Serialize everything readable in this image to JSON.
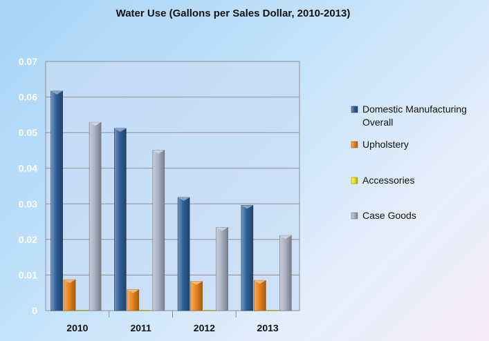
{
  "chart_data": {
    "type": "bar",
    "title": "Water Use (Gallons per Sales Dollar, 2010-2013)",
    "xlabel": "",
    "ylabel": "",
    "categories": [
      "2010",
      "2011",
      "2012",
      "2013"
    ],
    "ylim": [
      0,
      0.07
    ],
    "yticks": [
      "0",
      "0.01",
      "0.02",
      "0.03",
      "0.04",
      "0.05",
      "0.06",
      "0.07"
    ],
    "grid": true,
    "legend_position": "right",
    "series": [
      {
        "name": "Domestic Manufacturing Overall",
        "color": "#2e5f98",
        "values": [
          0.0617,
          0.0512,
          0.0318,
          0.0296
        ]
      },
      {
        "name": "Upholstery",
        "color": "#e8841a",
        "values": [
          0.0087,
          0.0059,
          0.0082,
          0.0085
        ]
      },
      {
        "name": "Accessories",
        "color": "#e8e81a",
        "values": [
          0.0001,
          0.0001,
          0.0001,
          0.0001
        ]
      },
      {
        "name": "Case Goods",
        "color": "#aab3c4",
        "values": [
          0.0529,
          0.0451,
          0.0234,
          0.0211
        ]
      }
    ]
  }
}
